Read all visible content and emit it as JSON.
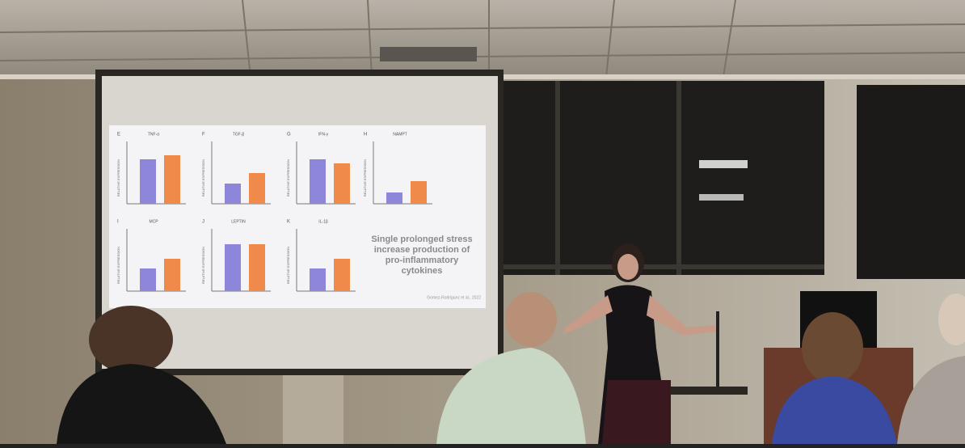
{
  "slide": {
    "panels": [
      {
        "letter": "E",
        "title": "TNF-α"
      },
      {
        "letter": "F",
        "title": "TGF-β"
      },
      {
        "letter": "G",
        "title": "IFN-γ"
      },
      {
        "letter": "H",
        "title": "NAMPT"
      },
      {
        "letter": "I",
        "title": "MCP"
      },
      {
        "letter": "J",
        "title": "LEPTIN"
      },
      {
        "letter": "K",
        "title": "IL-1β"
      }
    ],
    "y_label": "RELATIVE EXPRESSION",
    "message": [
      "Single prolonged stress",
      "increase production of",
      "pro-inflammatory",
      "cytokines"
    ],
    "citation": "Gomez-Rodriguez et al., 2022"
  }
}
